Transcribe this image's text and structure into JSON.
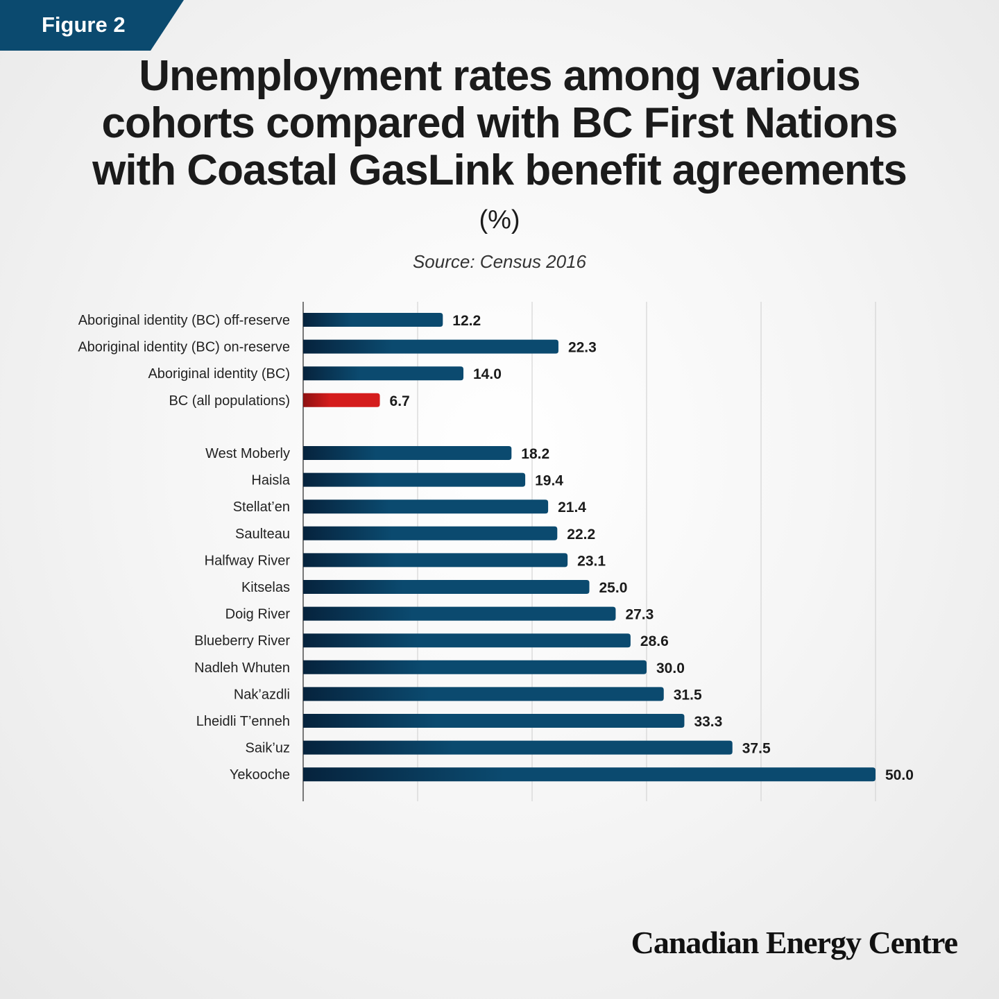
{
  "badge": "Figure 2",
  "chart_data": {
    "type": "bar",
    "orientation": "horizontal",
    "title": "Unemployment rates among various cohorts compared with BC First Nations with Coastal GasLink benefit agreements",
    "unit": "(%)",
    "source": "Source: Census 2016",
    "xlim": [
      0,
      50
    ],
    "grid": true,
    "groups": [
      {
        "categories": [
          "Aboriginal identity (BC) off-reserve",
          "Aboriginal identity (BC) on-reserve",
          "Aboriginal identity (BC)",
          "BC (all populations)"
        ],
        "values": [
          12.2,
          22.3,
          14.0,
          6.7
        ],
        "labels": [
          "12.2",
          "22.3",
          "14.0",
          "6.7"
        ],
        "highlight": [
          false,
          false,
          false,
          true
        ]
      },
      {
        "categories": [
          "West Moberly",
          "Haisla",
          "Stellat’en",
          "Saulteau",
          "Halfway River",
          "Kitselas",
          "Doig River",
          "Blueberry River",
          "Nadleh Whuten",
          "Nak’azdli",
          "Lheidli T’enneh",
          "Saik’uz",
          "Yekooche"
        ],
        "values": [
          18.2,
          19.4,
          21.4,
          22.2,
          23.1,
          25.0,
          27.3,
          28.6,
          30.0,
          31.5,
          33.3,
          37.5,
          50.0
        ],
        "labels": [
          "18.2",
          "19.4",
          "21.4",
          "22.2",
          "23.1",
          "25.0",
          "27.3",
          "28.6",
          "30.0",
          "31.5",
          "33.3",
          "37.5",
          "50.0"
        ],
        "highlight": [
          false,
          false,
          false,
          false,
          false,
          false,
          false,
          false,
          false,
          false,
          false,
          false,
          false
        ]
      }
    ],
    "colors": {
      "bar_dark": "#06233d",
      "bar": "#0b4a6f",
      "highlight_dark": "#8e1212",
      "highlight": "#d41c1c"
    }
  },
  "brand": "Canadian Energy Centre"
}
